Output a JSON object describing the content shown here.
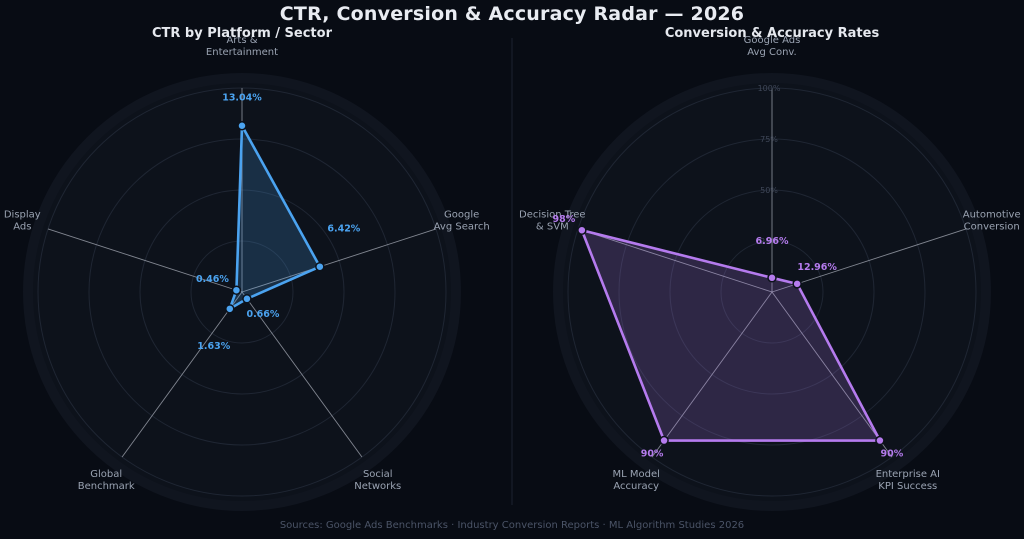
{
  "title": "CTR, Conversion & Accuracy Radar — 2026",
  "footer": "Sources: Google Ads Benchmarks · Industry Conversion Reports · ML Algorithm Studies 2026",
  "colors": {
    "background": "#080c14",
    "panel": "#0d121b",
    "ctr_series": "#4ba3f0",
    "conv_series": "#b57bee",
    "spoke": "#a8adb8",
    "ring": "#1f2633"
  },
  "chart_data": [
    {
      "type": "radar",
      "title": "CTR by Platform / Sector",
      "axes": [
        "Arts &\nEntertainment",
        "Google\nAvg Search",
        "Social\nNetworks",
        "Global\nBenchmark",
        "Display\nAds"
      ],
      "values": [
        13.04,
        6.42,
        0.66,
        1.63,
        0.46
      ],
      "value_labels": [
        "13.04%",
        "6.42%",
        "0.66%",
        "1.63%",
        "0.46%"
      ],
      "rmax": 16,
      "ring_values": [
        4,
        8,
        12,
        16
      ],
      "ring_labels": [
        "",
        "",
        "",
        ""
      ],
      "color": "#4ba3f0"
    },
    {
      "type": "radar",
      "title": "Conversion & Accuracy Rates",
      "axes": [
        "Google Ads\nAvg Conv.",
        "Automotive\nConversion",
        "Enterprise AI\nKPI Success",
        "ML Model\nAccuracy",
        "Decision Tree\n& SVM"
      ],
      "values": [
        6.96,
        12.96,
        90,
        90,
        98
      ],
      "value_labels": [
        "6.96%",
        "12.96%",
        "90%",
        "90%",
        "98%"
      ],
      "rmax": 100,
      "ring_values": [
        25,
        50,
        75,
        100
      ],
      "ring_labels": [
        "25%",
        "50%",
        "75%",
        "100%"
      ],
      "color": "#b57bee"
    }
  ]
}
